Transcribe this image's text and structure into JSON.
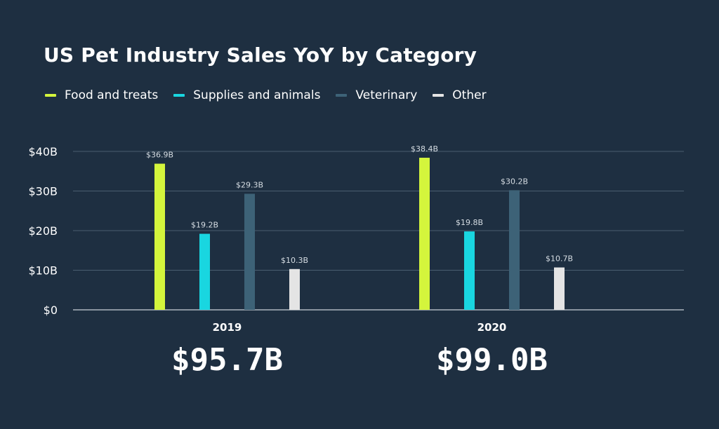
{
  "chart_data": {
    "type": "bar",
    "title": "US Pet Industry Sales YoY by Category",
    "categories": [
      "2019",
      "2020"
    ],
    "totals": [
      "$95.7B",
      "$99.0B"
    ],
    "series": [
      {
        "name": "Food and treats",
        "color": "#d4f53c",
        "values": [
          36.9,
          38.4
        ],
        "labels": [
          "$36.9B",
          "$38.4B"
        ]
      },
      {
        "name": "Supplies and animals",
        "color": "#19d6e0",
        "values": [
          19.2,
          19.8
        ],
        "labels": [
          "$19.2B",
          "$19.8B"
        ]
      },
      {
        "name": "Veterinary",
        "color": "#3d6277",
        "values": [
          29.3,
          30.2
        ],
        "labels": [
          "$29.3B",
          "$30.2B"
        ]
      },
      {
        "name": "Other",
        "color": "#e4e4e4",
        "values": [
          10.3,
          10.7
        ],
        "labels": [
          "$10.3B",
          "$10.7B"
        ]
      }
    ],
    "yticks": [
      "$0",
      "$10B",
      "$20B",
      "$30B",
      "$40B"
    ],
    "ytick_values": [
      0,
      10,
      20,
      30,
      40
    ],
    "ylim": [
      0,
      40
    ],
    "grid": true,
    "legend_position": "top-left"
  }
}
